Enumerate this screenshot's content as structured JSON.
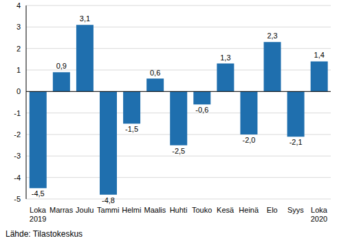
{
  "chart_data": {
    "type": "bar",
    "categories": [
      "Loka 2019",
      "Marras",
      "Joulu",
      "Tammi",
      "Helmi",
      "Maalis",
      "Huhti",
      "Touko",
      "Kesä",
      "Heinä",
      "Elo",
      "Syys",
      "Loka 2020"
    ],
    "values": [
      -4.5,
      0.9,
      3.1,
      -4.8,
      -1.5,
      0.6,
      -2.5,
      -0.6,
      1.3,
      -2.0,
      2.3,
      -2.1,
      1.4
    ],
    "value_labels": [
      "-4,5",
      "0,9",
      "3,1",
      "-4,8",
      "-1,5",
      "0,6",
      "-2,5",
      "-0,6",
      "1,3",
      "-2,0",
      "2,3",
      "-2,1",
      "1,4"
    ],
    "color": "#1f6fae",
    "ylim": [
      -5,
      4
    ],
    "yticks": [
      -5,
      -4,
      -3,
      -2,
      -1,
      0,
      1,
      2,
      3,
      4
    ],
    "grid": true,
    "data_labels": true,
    "source": "Lähde: Tilastokeskus"
  }
}
